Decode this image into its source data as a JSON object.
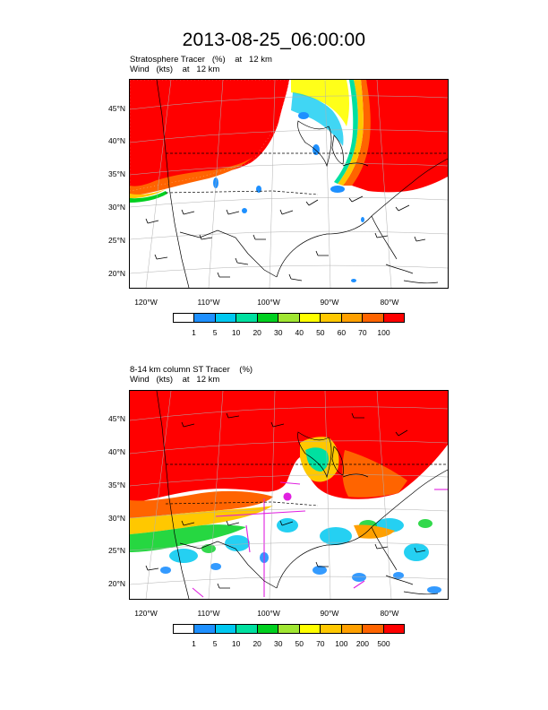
{
  "title": "2013-08-25_06:00:00",
  "panels": [
    {
      "subtitle_line1": "Stratosphere Tracer   (%)    at   12 km",
      "subtitle_line2": "Wind   (kts)    at   12 km",
      "lat_labels": [
        "45°N",
        "40°N",
        "35°N",
        "30°N",
        "25°N",
        "20°N"
      ],
      "lon_labels": [
        "120°W",
        "110°W",
        "100°W",
        "90°W",
        "80°W"
      ],
      "colorbar": {
        "colors": [
          "#ffffff",
          "#1e90ff",
          "#00c8f0",
          "#00e0a0",
          "#00d020",
          "#a0e632",
          "#ffff00",
          "#ffc800",
          "#ffa000",
          "#ff6400",
          "#ff0000"
        ],
        "labels": [
          "1",
          "5",
          "10",
          "20",
          "30",
          "40",
          "50",
          "60",
          "70",
          "100"
        ]
      }
    },
    {
      "subtitle_line1": "8-14 km column ST Tracer    (%)",
      "subtitle_line2": "Wind   (kts)    at   12 km",
      "lat_labels": [
        "45°N",
        "40°N",
        "35°N",
        "30°N",
        "25°N",
        "20°N"
      ],
      "lon_labels": [
        "120°W",
        "110°W",
        "100°W",
        "90°W",
        "80°W"
      ],
      "colorbar": {
        "colors": [
          "#ffffff",
          "#1e90ff",
          "#00c8f0",
          "#00e0a0",
          "#00d020",
          "#a0e632",
          "#ffff00",
          "#ffc800",
          "#ffa000",
          "#ff6400",
          "#ff0000"
        ],
        "labels": [
          "1",
          "5",
          "10",
          "20",
          "30",
          "50",
          "70",
          "100",
          "200",
          "500"
        ]
      }
    }
  ]
}
